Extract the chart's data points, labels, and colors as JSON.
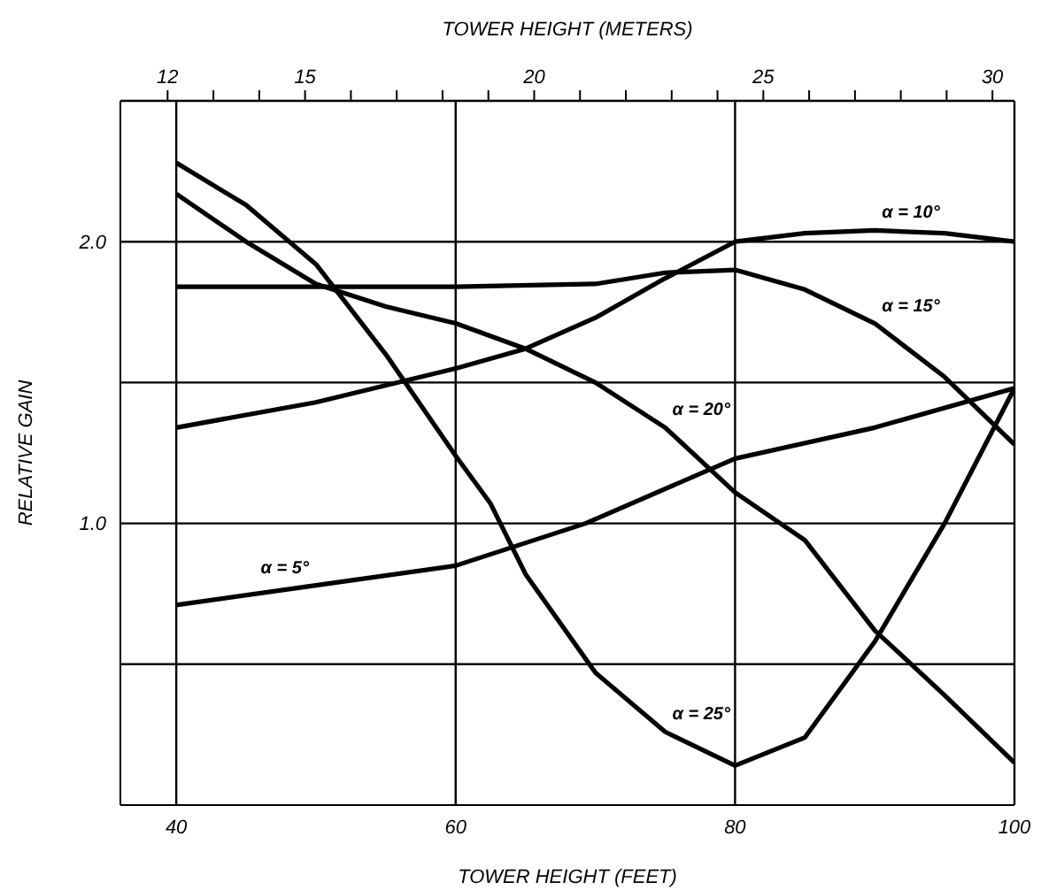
{
  "chart_data": {
    "type": "line",
    "xlabel": "TOWER HEIGHT (FEET)",
    "x2label": "TOWER HEIGHT (METERS)",
    "ylabel": "RELATIVE GAIN",
    "xlim": [
      36,
      100
    ],
    "xticks": [
      40,
      60,
      80,
      100
    ],
    "x2lim": [
      10.97,
      30.48
    ],
    "x2ticks": [
      12,
      {
        "value": 13,
        "label": null
      },
      {
        "value": 14,
        "label": null
      },
      15,
      {
        "value": 16,
        "label": null
      },
      {
        "value": 17,
        "label": null
      },
      {
        "value": 18,
        "label": null
      },
      {
        "value": 19,
        "label": null
      },
      20,
      {
        "value": 21,
        "label": null
      },
      {
        "value": 22,
        "label": null
      },
      {
        "value": 23,
        "label": null
      },
      {
        "value": 24,
        "label": null
      },
      25,
      {
        "value": 26,
        "label": null
      },
      {
        "value": 27,
        "label": null
      },
      {
        "value": 28,
        "label": null
      },
      {
        "value": 29,
        "label": null
      },
      30
    ],
    "ylim": [
      0,
      2.5
    ],
    "yticks": [
      {
        "value": 0.5,
        "label": null
      },
      {
        "value": 1,
        "label": "1.0"
      },
      {
        "value": 1.5,
        "label": null
      },
      {
        "value": 2,
        "label": "2.0"
      }
    ],
    "grid": true,
    "marker": "none",
    "line_style": "solid",
    "series": [
      {
        "color": "#000000",
        "x": [
          40,
          50,
          60,
          69.3,
          80,
          90,
          100
        ],
        "values": [
          0.71,
          0.78,
          0.85,
          1.0,
          1.23,
          1.34,
          1.48
        ]
      },
      {
        "color": "#000000",
        "x": [
          40,
          50,
          60,
          65,
          70,
          75,
          80,
          85,
          90,
          95,
          100
        ],
        "values": [
          1.34,
          1.43,
          1.55,
          1.62,
          1.73,
          1.87,
          2.0,
          2.03,
          2.04,
          2.03,
          2.0
        ]
      },
      {
        "color": "#000000",
        "x": [
          40,
          60,
          70,
          75,
          80,
          85,
          90,
          95,
          100
        ],
        "values": [
          1.84,
          1.84,
          1.85,
          1.89,
          1.9,
          1.83,
          1.71,
          1.52,
          1.28
        ]
      },
      {
        "color": "#000000",
        "x": [
          40,
          45,
          50,
          55,
          60,
          65,
          70,
          75,
          80,
          85,
          90,
          95,
          100
        ],
        "values": [
          2.17,
          2.0,
          1.85,
          1.77,
          1.71,
          1.62,
          1.5,
          1.34,
          1.11,
          0.94,
          0.62,
          0.39,
          0.15
        ]
      },
      {
        "color": "#000000",
        "x": [
          40,
          45,
          50,
          55,
          60,
          62.5,
          65,
          70,
          75,
          80,
          85,
          90,
          95,
          100
        ],
        "values": [
          2.28,
          2.13,
          1.92,
          1.6,
          1.24,
          1.07,
          0.82,
          0.47,
          0.26,
          0.14,
          0.24,
          0.58,
          1.0,
          1.48
        ]
      }
    ],
    "annotations": [
      {
        "text": "α = 5°",
        "x": 50,
        "y": 0.78
      },
      {
        "text": "α = 10°",
        "x": 90,
        "y": 2.04
      },
      {
        "text": "α = 15°",
        "x": 90,
        "y": 1.71
      },
      {
        "text": "α = 20°",
        "x": 75,
        "y": 1.34
      },
      {
        "text": "α = 25°",
        "x": 75,
        "y": 0.26
      }
    ]
  }
}
